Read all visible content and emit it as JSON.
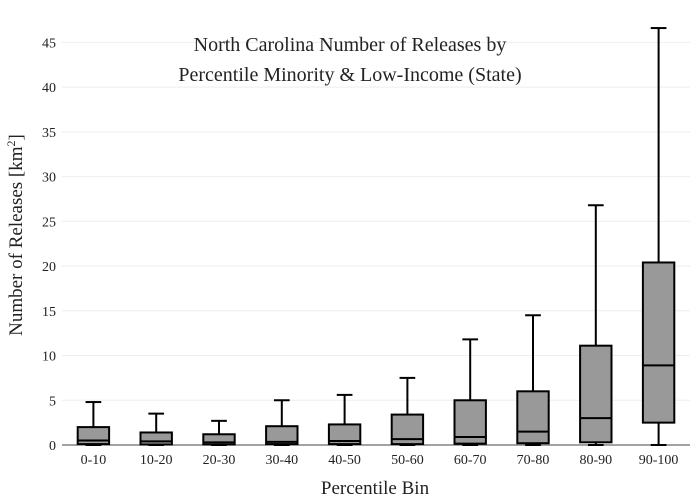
{
  "chart_data": {
    "type": "box",
    "title_lines": [
      "North Carolina Number of Releases by",
      "Percentile Minority & Low-Income (State)"
    ],
    "xlabel": "Percentile Bin",
    "ylabel": "Number of Releases  [km",
    "ylabel_sup": "2",
    "ylabel_close": "]",
    "ylim": [
      0,
      47.5
    ],
    "yticks": [
      "0",
      "5",
      "10",
      "15",
      "20",
      "25",
      "30",
      "35",
      "40",
      "45"
    ],
    "grid": true,
    "box_color": "#999999",
    "categories": [
      "0-10",
      "10-20",
      "20-30",
      "30-40",
      "40-50",
      "50-60",
      "60-70",
      "70-80",
      "80-90",
      "90-100"
    ],
    "boxes": [
      {
        "min": 0,
        "q1": 0.1,
        "median": 0.5,
        "q3": 2.0,
        "max": 4.8
      },
      {
        "min": 0,
        "q1": 0.05,
        "median": 0.4,
        "q3": 1.4,
        "max": 3.5
      },
      {
        "min": 0,
        "q1": 0.05,
        "median": 0.3,
        "q3": 1.2,
        "max": 2.7
      },
      {
        "min": 0,
        "q1": 0.1,
        "median": 0.35,
        "q3": 2.1,
        "max": 5.0
      },
      {
        "min": 0,
        "q1": 0.1,
        "median": 0.45,
        "q3": 2.3,
        "max": 5.6
      },
      {
        "min": 0,
        "q1": 0.1,
        "median": 0.65,
        "q3": 3.4,
        "max": 7.5
      },
      {
        "min": 0,
        "q1": 0.15,
        "median": 0.9,
        "q3": 5.0,
        "max": 11.8
      },
      {
        "min": 0,
        "q1": 0.2,
        "median": 1.5,
        "q3": 6.0,
        "max": 14.5
      },
      {
        "min": 0,
        "q1": 0.3,
        "median": 3.0,
        "q3": 11.1,
        "max": 26.8
      },
      {
        "min": 0,
        "q1": 2.5,
        "median": 8.9,
        "q3": 20.4,
        "max": 46.6
      }
    ]
  }
}
